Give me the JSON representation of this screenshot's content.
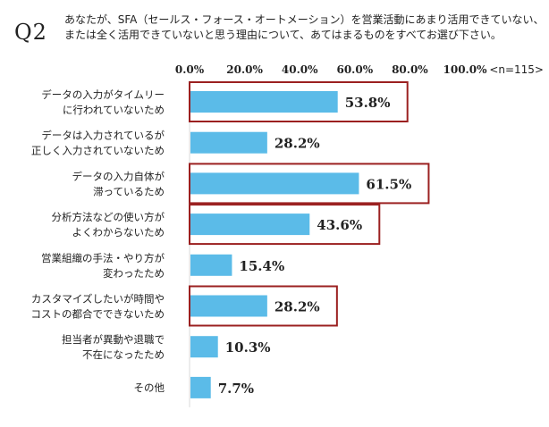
{
  "question": {
    "label": "Q2",
    "line1": "あなたが、SFA（セールス・フォース・オートメーション）を営業活動にあまり活用できていない、",
    "line2": "または全く活用できていないと思う理由について、あてはまるものをすべてお選び下さい。"
  },
  "chart_data": {
    "type": "bar",
    "orientation": "horizontal",
    "n_label": "<n=115>",
    "x_ticks": [
      "0.0%",
      "20.0%",
      "40.0%",
      "60.0%",
      "80.0%",
      "100.0%"
    ],
    "xlim": [
      0,
      100
    ],
    "categories": [
      [
        "データの入力がタイムリー",
        "に行われていないため"
      ],
      [
        "データは入力されているが",
        "正しく入力されていないため"
      ],
      [
        "データの入力自体が",
        "滞っているため"
      ],
      [
        "分析方法などの使い方が",
        "よくわからないため"
      ],
      [
        "営業組織の手法・やり方が",
        "変わったため"
      ],
      [
        "カスタマイズしたいが時間や",
        "コストの都合でできないため"
      ],
      [
        "担当者が異動や退職で",
        "不在になったため"
      ],
      [
        "その他"
      ]
    ],
    "values": [
      53.8,
      28.2,
      61.5,
      43.6,
      15.4,
      28.2,
      10.3,
      7.7
    ],
    "value_labels": [
      "53.8%",
      "28.2%",
      "61.5%",
      "43.6%",
      "15.4%",
      "28.2%",
      "10.3%",
      "7.7%"
    ],
    "highlighted": [
      true,
      false,
      true,
      true,
      false,
      true,
      false,
      false
    ],
    "colors": {
      "bar": "#5bbbe8",
      "highlight": "#9b2020",
      "text": "#222222"
    }
  }
}
